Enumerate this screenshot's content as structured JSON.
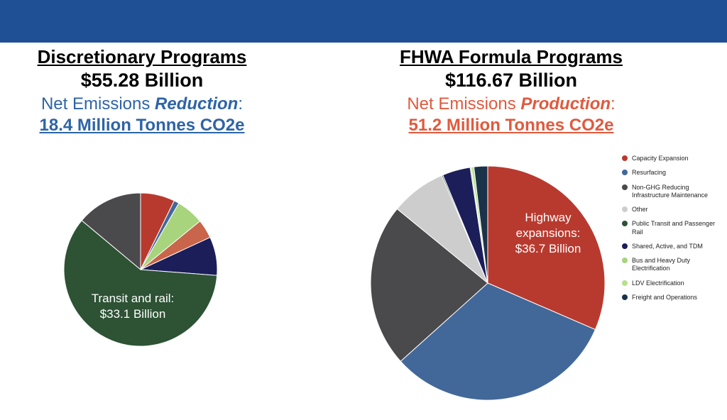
{
  "left": {
    "title": "Discretionary Programs",
    "total": "$55.28 Billion",
    "net_prefix": "Net Emissions ",
    "net_keyword": "Reduction",
    "net_suffix": ":",
    "amount": "18.4 Million Tonnes CO2e",
    "slice_label_line1": "Transit and rail:",
    "slice_label_line2": "$33.1 Billion"
  },
  "right": {
    "title": "FHWA Formula Programs",
    "total": "$116.67 Billion",
    "net_prefix": "Net Emissions ",
    "net_keyword": "Production",
    "net_suffix": ":",
    "amount": "51.2 Million Tonnes CO2e",
    "slice_label_line1": "Highway",
    "slice_label_line2": "expansions:",
    "slice_label_line3": "$36.7 Billion"
  },
  "legend": [
    {
      "label": "Capacity Expansion",
      "color": "#b83a2f"
    },
    {
      "label": "Resurfacing",
      "color": "#426899"
    },
    {
      "label": "Non-GHG Reducing Infrastructure Maintenance",
      "color": "#4a4a4c"
    },
    {
      "label": "Other",
      "color": "#cdcdcd"
    },
    {
      "label": "Public Transit and Passenger Rail",
      "color": "#2d5234"
    },
    {
      "label": "Shared, Active, and TDM",
      "color": "#1c1e5a"
    },
    {
      "label": "Bus and Heavy Duty Electrification",
      "color": "#a9d47e"
    },
    {
      "label": "LDV Electrification",
      "color": "#b5e08c"
    },
    {
      "label": "Freight and Operations",
      "color": "#1a3349"
    }
  ],
  "chart_data": [
    {
      "type": "pie",
      "title": "Discretionary Programs",
      "unit": "$ Billion",
      "slices": [
        {
          "category": "Capacity Expansion",
          "value": 4.0
        },
        {
          "category": "Resurfacing",
          "value": 0.6
        },
        {
          "category": "Bus and Heavy Duty Electrification",
          "value": 3.2
        },
        {
          "category": "Other",
          "value": 2.2,
          "color": "#c8654a"
        },
        {
          "category": "Shared, Active, and TDM",
          "value": 4.5
        },
        {
          "category": "Public Transit and Passenger Rail",
          "value": 33.1
        },
        {
          "category": "Non-GHG Reducing Infrastructure Maintenance",
          "value": 7.7
        }
      ]
    },
    {
      "type": "pie",
      "title": "FHWA Formula Programs",
      "unit": "$ Billion",
      "slices": [
        {
          "category": "Capacity Expansion",
          "value": 36.7
        },
        {
          "category": "Resurfacing",
          "value": 37.1
        },
        {
          "category": "Non-GHG Reducing Infrastructure Maintenance",
          "value": 26.3
        },
        {
          "category": "Other",
          "value": 8.9
        },
        {
          "category": "Public Transit and Passenger Rail",
          "value": 0.2
        },
        {
          "category": "Shared, Active, and TDM",
          "value": 4.5
        },
        {
          "category": "Bus and Heavy Duty Electrification",
          "value": 0.2
        },
        {
          "category": "LDV Electrification",
          "value": 0.4
        },
        {
          "category": "Freight and Operations",
          "value": 2.2
        }
      ]
    }
  ]
}
